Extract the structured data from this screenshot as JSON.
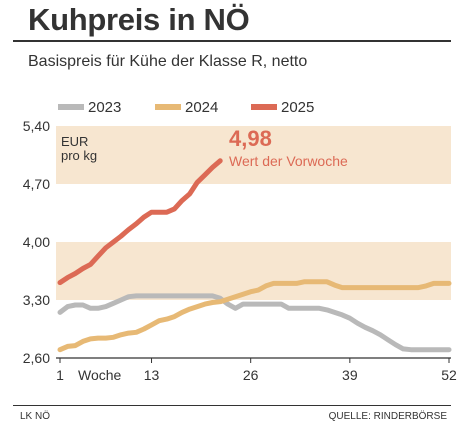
{
  "title": "Kuhpreis in NÖ",
  "subtitle": "Basispreis für Kühe der Klasse R, netto",
  "footer_left": "LK NÖ",
  "footer_right": "QUELLE: RINDERBÖRSE",
  "colors": {
    "series_2023": "#b9b9b9",
    "series_2024": "#e7b975",
    "series_2025": "#dc6a55",
    "band": "#f7e6d0",
    "annotation": "#dc6a55"
  },
  "chart_data": {
    "type": "line",
    "unit_label_line1": "EUR",
    "unit_label_line2": "pro kg",
    "xlabel": "Woche",
    "xlim": [
      1,
      52
    ],
    "ylim": [
      2.6,
      5.4
    ],
    "x_ticks": [
      1,
      13,
      26,
      39,
      52
    ],
    "x_tick_labels": [
      "1",
      "13",
      "26",
      "39",
      "52"
    ],
    "y_ticks": [
      2.6,
      3.3,
      4.0,
      4.7,
      5.4
    ],
    "y_tick_labels": [
      "2,60",
      "3,30",
      "4,00",
      "4,70",
      "5,40"
    ],
    "bands": [
      [
        4.7,
        5.4
      ],
      [
        3.3,
        4.0
      ]
    ],
    "grid": false,
    "legend_position": "top",
    "annotation": {
      "value": "4,98",
      "text": "Wert der Vorwoche"
    },
    "series": [
      {
        "name": "2023",
        "x": [
          1,
          2,
          3,
          4,
          5,
          6,
          7,
          8,
          9,
          10,
          11,
          12,
          13,
          14,
          15,
          16,
          17,
          18,
          19,
          20,
          21,
          22,
          23,
          24,
          25,
          26,
          27,
          28,
          29,
          30,
          31,
          32,
          33,
          34,
          35,
          36,
          37,
          38,
          39,
          40,
          41,
          42,
          43,
          44,
          45,
          46,
          47,
          48,
          49,
          50,
          51,
          52
        ],
        "values": [
          3.15,
          3.22,
          3.24,
          3.24,
          3.2,
          3.2,
          3.22,
          3.26,
          3.3,
          3.34,
          3.35,
          3.35,
          3.35,
          3.35,
          3.35,
          3.35,
          3.35,
          3.35,
          3.35,
          3.35,
          3.35,
          3.32,
          3.25,
          3.2,
          3.25,
          3.25,
          3.25,
          3.25,
          3.25,
          3.25,
          3.2,
          3.2,
          3.2,
          3.2,
          3.2,
          3.18,
          3.15,
          3.12,
          3.08,
          3.02,
          2.97,
          2.93,
          2.88,
          2.82,
          2.76,
          2.71,
          2.7,
          2.7,
          2.7,
          2.7,
          2.7,
          2.7
        ]
      },
      {
        "name": "2024",
        "x": [
          1,
          2,
          3,
          4,
          5,
          6,
          7,
          8,
          9,
          10,
          11,
          12,
          13,
          14,
          15,
          16,
          17,
          18,
          19,
          20,
          21,
          22,
          23,
          24,
          25,
          26,
          27,
          28,
          29,
          30,
          31,
          32,
          33,
          34,
          35,
          36,
          37,
          38,
          39,
          40,
          41,
          42,
          43,
          44,
          45,
          46,
          47,
          48,
          49,
          50,
          51,
          52
        ],
        "values": [
          2.7,
          2.74,
          2.75,
          2.8,
          2.83,
          2.84,
          2.84,
          2.85,
          2.88,
          2.9,
          2.91,
          2.95,
          3.0,
          3.05,
          3.07,
          3.1,
          3.15,
          3.19,
          3.22,
          3.25,
          3.27,
          3.28,
          3.31,
          3.34,
          3.37,
          3.4,
          3.42,
          3.47,
          3.5,
          3.5,
          3.5,
          3.5,
          3.52,
          3.52,
          3.52,
          3.52,
          3.48,
          3.45,
          3.45,
          3.45,
          3.45,
          3.45,
          3.45,
          3.45,
          3.45,
          3.45,
          3.45,
          3.45,
          3.47,
          3.5,
          3.5,
          3.5
        ]
      },
      {
        "name": "2025",
        "x": [
          1,
          2,
          3,
          4,
          5,
          6,
          7,
          8,
          9,
          10,
          11,
          12,
          13,
          14,
          15,
          16,
          17,
          18,
          19,
          20,
          21,
          22
        ],
        "values": [
          3.51,
          3.57,
          3.62,
          3.68,
          3.73,
          3.83,
          3.93,
          4.0,
          4.07,
          4.15,
          4.22,
          4.3,
          4.36,
          4.36,
          4.36,
          4.4,
          4.5,
          4.58,
          4.72,
          4.81,
          4.9,
          4.98
        ]
      }
    ]
  }
}
